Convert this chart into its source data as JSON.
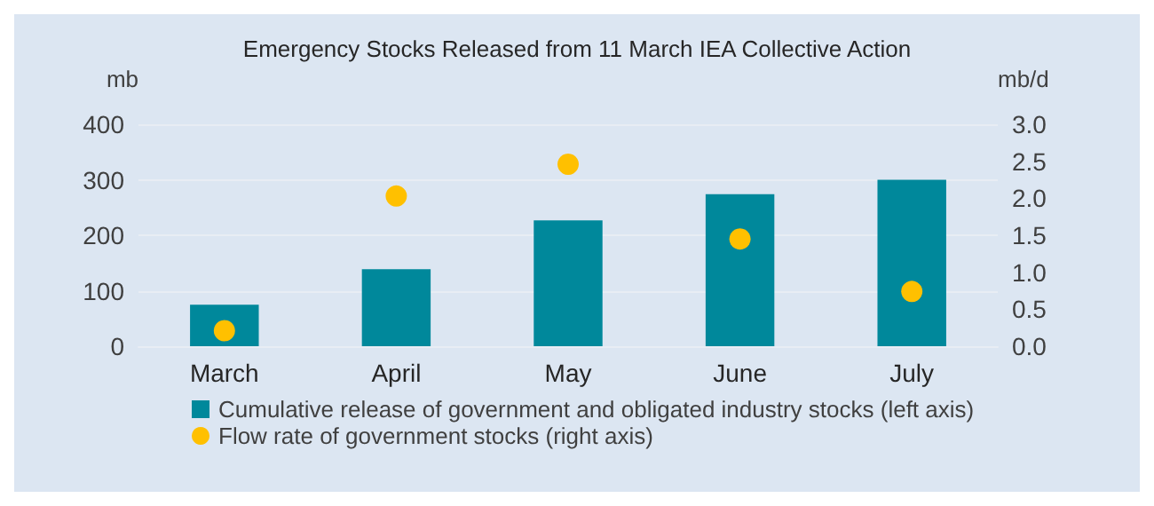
{
  "chart_data": {
    "type": "bar",
    "title": "Emergency Stocks Released from 11 March IEA Collective Action",
    "ylabel": "mb",
    "y2label": "mb/d",
    "categories": [
      "March",
      "April",
      "May",
      "June",
      "July"
    ],
    "series": [
      {
        "name": "Cumulative release of government and obligated industry stocks (left axis)",
        "color": "#00889b",
        "values": [
          75,
          139,
          227,
          274,
          300
        ]
      },
      {
        "name": "Flow rate of government stocks (right axis)",
        "type": "scatter",
        "axis": "y2",
        "color": "#ffc000",
        "marker": "circle",
        "values": [
          0.21,
          2.03,
          2.46,
          1.45,
          0.74
        ]
      }
    ],
    "ylim": [
      0,
      400
    ],
    "yticks": [
      0,
      100,
      200,
      300,
      400
    ],
    "y2lim": [
      0,
      3
    ],
    "y2ticks": [
      {
        "value": 0,
        "label": "0.0"
      },
      {
        "value": 0.5,
        "label": "0.5"
      },
      {
        "value": 1,
        "label": "1.0"
      },
      {
        "value": 1.5,
        "label": "1.5"
      },
      {
        "value": 2,
        "label": "2.0"
      },
      {
        "value": 2.5,
        "label": "2.5"
      },
      {
        "value": 3,
        "label": "3.0"
      }
    ],
    "grid": "y",
    "legend": "bottom left"
  }
}
